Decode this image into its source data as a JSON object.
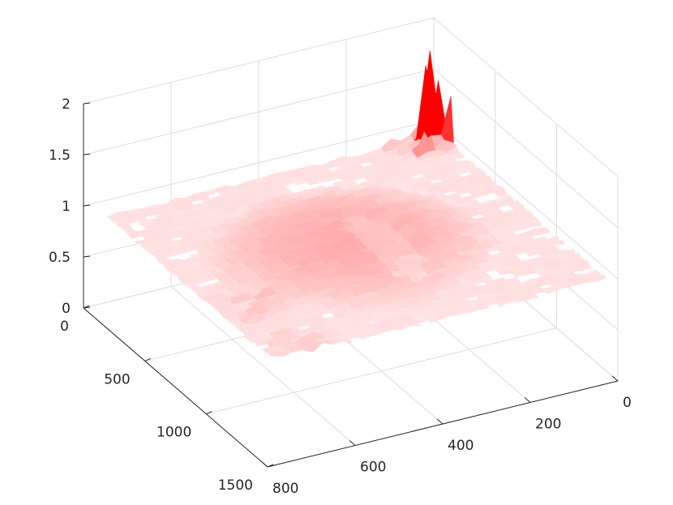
{
  "chart_data": {
    "type": "surface",
    "title": "",
    "xlabel": "",
    "ylabel": "",
    "zlabel": "",
    "grid": true,
    "colormap": [
      "#3333ff",
      "#ffffff",
      "#ff0000"
    ],
    "x_axis": {
      "range": [
        0,
        1500
      ],
      "ticks": [
        0,
        500,
        1000,
        1500
      ],
      "tick_labels": [
        "0",
        "500",
        "1000",
        "1500"
      ]
    },
    "y_axis": {
      "range": [
        0,
        800
      ],
      "ticks": [
        0,
        200,
        400,
        600,
        800
      ],
      "tick_labels": [
        "0",
        "200",
        "400",
        "600",
        "800"
      ]
    },
    "z_axis": {
      "range": [
        0,
        2
      ],
      "ticks": [
        0,
        0.5,
        1,
        1.5,
        2
      ],
      "tick_labels": [
        "0",
        "0.5",
        "1",
        "1.5",
        "2"
      ]
    },
    "surface_summary": {
      "baseline_level": 1.0,
      "central_plateau_level": 1.1,
      "spike_max": 2.0,
      "spike_clusters": [
        {
          "x": 100,
          "y": 50,
          "peak": 2.0
        },
        {
          "x": 1450,
          "y": 700,
          "peak": 1.3
        },
        {
          "x": 1050,
          "y": 720,
          "peak": 1.1
        }
      ]
    }
  }
}
